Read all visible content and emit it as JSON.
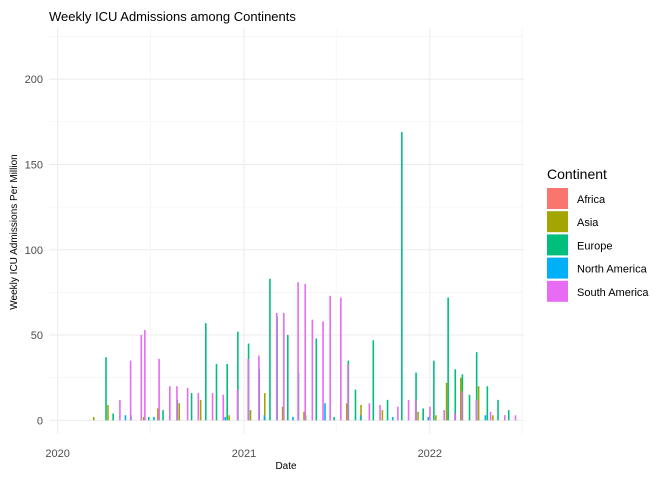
{
  "chart_data": {
    "type": "bar",
    "title": "Weekly ICU Admissions among Continents",
    "xlabel": "Date",
    "ylabel": "Weekly ICU Admissions Per Million",
    "x_ticks": [
      "2020",
      "2021",
      "2022"
    ],
    "y_ticks": [
      0,
      50,
      100,
      150,
      200
    ],
    "xlim": [
      "2019-12-15",
      "2022-07-05"
    ],
    "ylim": [
      -8,
      230
    ],
    "grid": true,
    "legend": {
      "title": "Continent",
      "placement": "right"
    },
    "series": [
      {
        "name": "Africa",
        "color": "#F8766D",
        "x": [],
        "values": []
      },
      {
        "name": "Asia",
        "color": "#A3A500",
        "x": [
          "2020-03-15",
          "2020-04-12",
          "2020-06-21",
          "2020-07-19",
          "2020-08-30",
          "2020-10-11",
          "2020-12-06",
          "2021-01-17",
          "2021-02-14",
          "2021-03-21",
          "2021-05-02",
          "2021-07-25",
          "2021-08-22",
          "2021-10-03",
          "2021-12-12",
          "2022-01-16",
          "2022-02-06",
          "2022-03-06",
          "2022-04-10",
          "2022-05-08"
        ],
        "values": [
          2,
          9,
          2,
          7,
          10,
          12,
          3,
          6,
          16,
          8,
          5,
          10,
          9,
          6,
          5,
          3,
          22,
          25,
          20,
          3
        ]
      },
      {
        "name": "Europe",
        "color": "#00BF7D",
        "x": [
          "2020-04-05",
          "2020-04-19",
          "2020-05-24",
          "2020-06-28",
          "2020-07-26",
          "2020-08-23",
          "2020-09-20",
          "2020-10-18",
          "2020-11-08",
          "2020-11-29",
          "2020-12-20",
          "2021-01-10",
          "2021-01-31",
          "2021-02-21",
          "2021-03-07",
          "2021-03-28",
          "2021-04-18",
          "2021-05-02",
          "2021-05-23",
          "2021-06-27",
          "2021-07-25",
          "2021-08-08",
          "2021-09-12",
          "2021-10-10",
          "2021-11-07",
          "2021-12-05",
          "2021-12-19",
          "2022-01-09",
          "2022-02-06",
          "2022-02-20",
          "2022-03-06",
          "2022-03-20",
          "2022-04-03",
          "2022-04-24",
          "2022-05-15",
          "2022-06-05"
        ],
        "values": [
          37,
          4,
          3,
          2,
          6,
          12,
          16,
          57,
          33,
          33,
          52,
          45,
          30,
          83,
          61,
          50,
          28,
          3,
          48,
          2,
          35,
          18,
          47,
          12,
          169,
          28,
          7,
          35,
          72,
          30,
          27,
          15,
          40,
          20,
          12,
          6
        ]
      },
      {
        "name": "North America",
        "color": "#00B0F6",
        "x": [
          "2020-05-10",
          "2020-07-05",
          "2020-11-22",
          "2021-02-07",
          "2021-04-04",
          "2021-06-06",
          "2021-08-15",
          "2021-10-17",
          "2021-12-26",
          "2022-04-17"
        ],
        "values": [
          3,
          2,
          2,
          3,
          2,
          10,
          3,
          2,
          2,
          3
        ]
      },
      {
        "name": "South America",
        "color": "#E76BF3",
        "x": [
          "2020-04-26",
          "2020-05-17",
          "2020-06-07",
          "2020-06-14",
          "2020-07-12",
          "2020-08-02",
          "2020-08-16",
          "2020-09-06",
          "2020-09-27",
          "2020-10-25",
          "2020-11-15",
          "2020-12-13",
          "2021-01-03",
          "2021-01-24",
          "2021-02-28",
          "2021-03-14",
          "2021-04-11",
          "2021-04-25",
          "2021-05-09",
          "2021-05-30",
          "2021-06-13",
          "2021-07-04",
          "2021-07-18",
          "2021-08-29",
          "2021-09-19",
          "2021-10-24",
          "2021-11-14",
          "2021-11-28",
          "2021-12-26",
          "2022-01-23",
          "2022-02-13",
          "2022-02-27",
          "2022-03-27",
          "2022-04-24",
          "2022-05-22",
          "2022-06-12"
        ],
        "values": [
          12,
          35,
          50,
          53,
          36,
          20,
          20,
          19,
          16,
          16,
          15,
          18,
          36,
          38,
          63,
          63,
          81,
          80,
          59,
          58,
          73,
          72,
          33,
          10,
          9,
          8,
          12,
          12,
          8,
          6,
          4,
          17,
          12,
          5,
          3,
          3
        ]
      }
    ]
  }
}
